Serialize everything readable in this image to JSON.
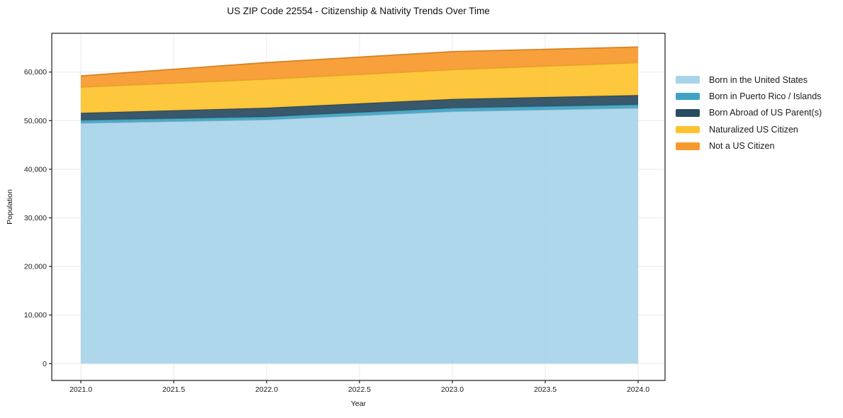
{
  "chart_data": {
    "type": "area",
    "stacked": true,
    "title": "US ZIP Code 22554 - Citizenship & Nativity Trends Over Time",
    "xlabel": "Year",
    "ylabel": "Population",
    "x": [
      2021,
      2022,
      2023,
      2024
    ],
    "series": [
      {
        "name": "Born in the United States",
        "color": "#a8d4e9",
        "values": [
          49500,
          50200,
          51900,
          52600
        ]
      },
      {
        "name": "Born in Puerto Rico / Islands",
        "color": "#3fa4c3",
        "values": [
          600,
          600,
          700,
          700
        ]
      },
      {
        "name": "Born Abroad of US Parent(s)",
        "color": "#2a4b60",
        "values": [
          1500,
          1850,
          1850,
          1950
        ]
      },
      {
        "name": "Naturalized US Citizen",
        "color": "#fdc32f",
        "values": [
          5300,
          5900,
          6050,
          6700
        ]
      },
      {
        "name": "Not a US Citizen",
        "color": "#f8992c",
        "values": [
          2300,
          3400,
          3700,
          3200
        ]
      }
    ],
    "totals": [
      59200,
      61950,
      64200,
      65150
    ],
    "xtick_labels": [
      "2021.0",
      "2021.5",
      "2022.0",
      "2022.5",
      "2023.0",
      "2023.5",
      "2024.0"
    ],
    "ytick_labels": [
      "0",
      "10,000",
      "20,000",
      "30,000",
      "40,000",
      "50,000",
      "60,000"
    ],
    "xlim": [
      2020.8435,
      2024.145
    ],
    "ylim": [
      -3455,
      67975
    ],
    "grid": true,
    "legend": {
      "position": "center right",
      "frame": false
    },
    "style": {
      "grid_color": "#e8e8e8",
      "spine_color": "#1c1c1c",
      "text_color": "#1c1c1c",
      "background": "#ffffff",
      "fill_opacity": 0.93
    }
  }
}
